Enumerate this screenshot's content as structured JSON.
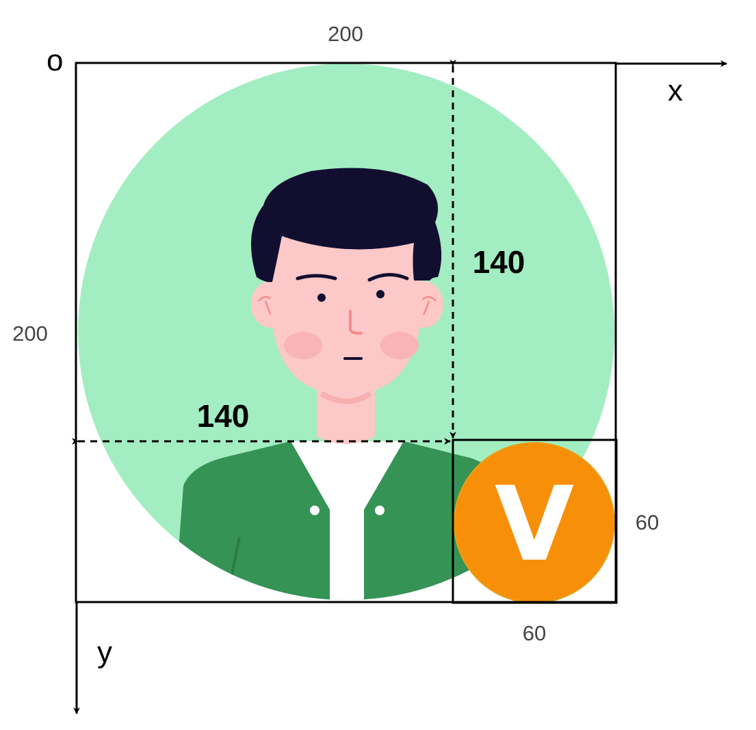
{
  "labels": {
    "origin": "o",
    "x_axis": "x",
    "y_axis": "y",
    "outer_width": "200",
    "outer_height": "200",
    "offset_x": "140",
    "offset_y": "140",
    "badge_width": "60",
    "badge_height": "60",
    "badge_letter": "V"
  },
  "colors": {
    "avatar_background": "#a3edc2",
    "hair": "#110e30",
    "skin": "#fdc8c8",
    "jacket": "#359355",
    "shirt": "#ffffff",
    "badge": "#f78f08",
    "badge_letter": "#ffffff",
    "lines": "#000000"
  },
  "icons": {
    "avatar": "avatar-person-icon",
    "badge": "v-badge-icon"
  }
}
